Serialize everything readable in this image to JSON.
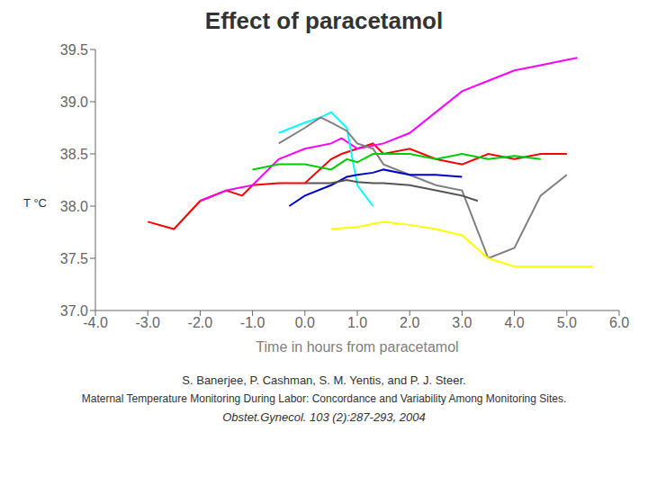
{
  "chart_data": {
    "type": "line",
    "title": "Effect of paracetamol",
    "xlabel": "Time in hours from paracetamol",
    "ylabel": "T °C",
    "annotations": [
      "S. Banerjee, P. Cashman, S. M. Yentis, and P. J. Steer.",
      "Maternal Temperature Monitoring During Labor: Concordance and Variability Among Monitoring Sites.",
      "Obstet.Gynecol. 103 (2):287-293, 2004"
    ],
    "xlim": [
      -4.0,
      6.0
    ],
    "ylim": [
      37.0,
      39.5
    ],
    "xticks": [
      {
        "value": -4.0,
        "label": "-4.0"
      },
      {
        "value": -3.0,
        "label": "-3.0"
      },
      {
        "value": -2.0,
        "label": "-2.0"
      },
      {
        "value": -1.0,
        "label": "-1.0"
      },
      {
        "value": 0.0,
        "label": "0.0"
      },
      {
        "value": 1.0,
        "label": "1.0"
      },
      {
        "value": 2.0,
        "label": "2.0"
      },
      {
        "value": 3.0,
        "label": "3.0"
      },
      {
        "value": 4.0,
        "label": "4.0"
      },
      {
        "value": 5.0,
        "label": "5.0"
      },
      {
        "value": 6.0,
        "label": "6.0"
      }
    ],
    "yticks": [
      {
        "value": 37.0,
        "label": "37.0"
      },
      37.5,
      {
        "value": 38.0,
        "label": "38.0"
      },
      38.5,
      {
        "value": 39.0,
        "label": "39.0"
      },
      39.5
    ],
    "grid": false,
    "series": [
      {
        "color": "#ff0000",
        "x": [
          -3.0,
          -2.5,
          -2.0,
          -1.5,
          -1.2,
          -1.0,
          -0.5,
          0.0,
          0.5,
          0.7,
          1.0,
          1.3,
          1.5,
          2.0,
          2.5,
          3.0,
          3.5,
          4.0,
          4.5,
          5.0
        ],
        "values": [
          37.85,
          37.78,
          38.05,
          38.15,
          38.1,
          38.2,
          38.22,
          38.22,
          38.45,
          38.5,
          38.55,
          38.6,
          38.5,
          38.55,
          38.45,
          38.4,
          38.5,
          38.45,
          38.5,
          38.5
        ]
      },
      {
        "color": "#ff00ff",
        "x": [
          -2.0,
          -1.5,
          -1.0,
          -0.5,
          0.0,
          0.5,
          0.7,
          1.0,
          1.5,
          2.0,
          2.5,
          3.0,
          3.5,
          4.0,
          4.5,
          5.0,
          5.2
        ],
        "values": [
          38.05,
          38.15,
          38.2,
          38.45,
          38.55,
          38.6,
          38.65,
          38.55,
          38.6,
          38.7,
          38.9,
          39.1,
          39.2,
          39.3,
          39.35,
          39.4,
          39.42
        ]
      },
      {
        "color": "#00ffff",
        "x": [
          -0.5,
          0.0,
          0.3,
          0.5,
          0.8,
          1.0,
          1.3
        ],
        "values": [
          38.7,
          38.8,
          38.85,
          38.9,
          38.75,
          38.2,
          38.0
        ]
      },
      {
        "color": "#808080",
        "x": [
          -0.5,
          0.0,
          0.3,
          0.5,
          0.8,
          1.0,
          1.3,
          1.5,
          2.0,
          2.5,
          3.0,
          3.5,
          4.0,
          4.5,
          5.0
        ],
        "values": [
          38.6,
          38.75,
          38.85,
          38.8,
          38.72,
          38.6,
          38.55,
          38.4,
          38.3,
          38.2,
          38.15,
          37.5,
          37.6,
          38.1,
          38.3
        ]
      },
      {
        "color": "#00cc00",
        "x": [
          -1.0,
          -0.5,
          0.0,
          0.5,
          0.8,
          1.0,
          1.3,
          1.5,
          2.0,
          2.5,
          3.0,
          3.5,
          4.0,
          4.5
        ],
        "values": [
          38.35,
          38.4,
          38.4,
          38.35,
          38.45,
          38.42,
          38.5,
          38.5,
          38.5,
          38.45,
          38.5,
          38.45,
          38.48,
          38.45
        ]
      },
      {
        "color": "#0000cc",
        "x": [
          -0.3,
          0.0,
          0.5,
          0.8,
          1.0,
          1.3,
          1.5,
          2.0,
          2.5,
          3.0
        ],
        "values": [
          38.0,
          38.1,
          38.2,
          38.28,
          38.3,
          38.32,
          38.35,
          38.3,
          38.3,
          38.28
        ]
      },
      {
        "color": "#555555",
        "x": [
          0.0,
          0.5,
          0.8,
          1.0,
          1.3,
          1.5,
          2.0,
          2.5,
          3.0,
          3.3
        ],
        "values": [
          38.22,
          38.22,
          38.25,
          38.23,
          38.22,
          38.22,
          38.2,
          38.15,
          38.1,
          38.05
        ]
      },
      {
        "color": "#ffff00",
        "x": [
          0.5,
          1.0,
          1.5,
          2.0,
          2.5,
          3.0,
          3.5,
          4.0,
          4.5,
          5.0,
          5.5
        ],
        "values": [
          37.78,
          37.8,
          37.85,
          37.82,
          37.78,
          37.72,
          37.5,
          37.42,
          37.42,
          37.42,
          37.42
        ]
      }
    ]
  }
}
